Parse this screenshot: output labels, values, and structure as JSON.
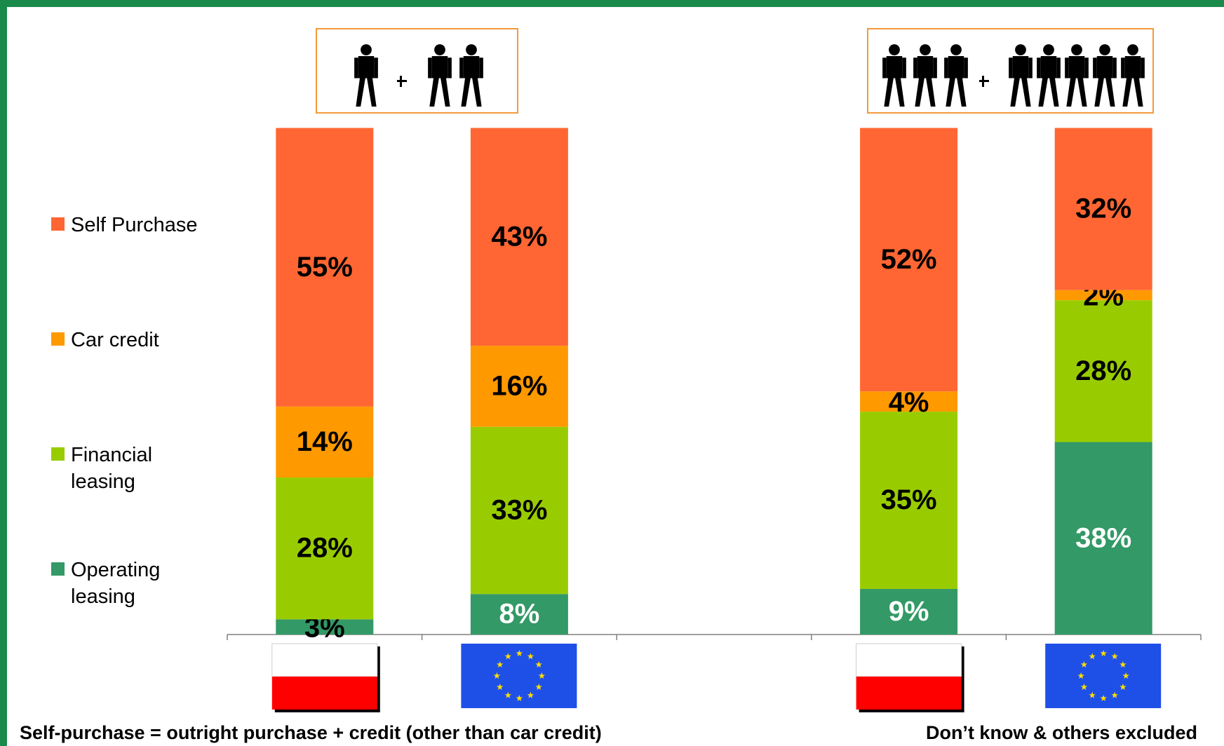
{
  "chart_data": {
    "type": "stacked_bar",
    "categories": [
      null,
      null,
      null,
      null,
      null
    ],
    "ylim": [
      0,
      100
    ],
    "legend": "left",
    "series": [
      {
        "name": "Operating leasing",
        "color": "#339966",
        "values": [
          3,
          8,
          null,
          9,
          38
        ],
        "value_labels": [
          "3%",
          "8%",
          null,
          "9%",
          "38%"
        ]
      },
      {
        "name": "Financial leasing",
        "color": "#99cc00",
        "values": [
          28,
          33,
          null,
          35,
          28
        ],
        "value_labels": [
          "28%",
          "33%",
          null,
          "35%",
          "28%"
        ]
      },
      {
        "name": "Car credit",
        "color": "#ff9900",
        "values": [
          14,
          16,
          null,
          4,
          2
        ],
        "value_labels": [
          "14%",
          "16%",
          null,
          "4%",
          "2%"
        ]
      },
      {
        "name": "Self Purchase",
        "color": "#ff6633",
        "values": [
          55,
          43,
          null,
          52,
          32
        ],
        "value_labels": [
          "55%",
          "43%",
          null,
          "52%",
          "32%"
        ]
      }
    ],
    "footnotes": [
      "Self-purchase = outright purchase + credit (other than car credit)",
      "Don’t know & others excluded"
    ]
  }
}
